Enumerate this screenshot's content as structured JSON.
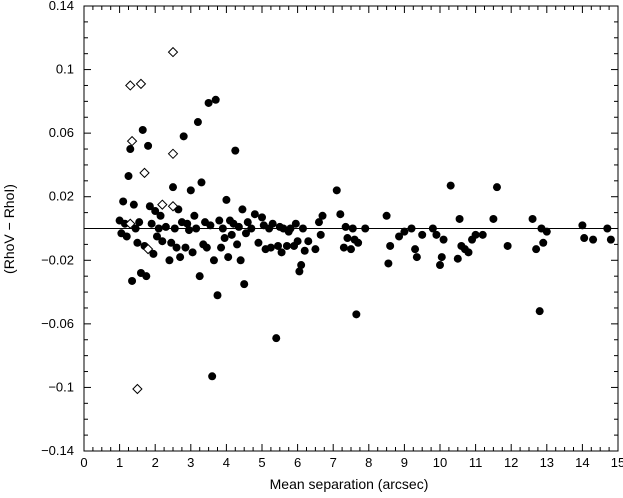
{
  "chart_data": {
    "type": "scatter",
    "title": "",
    "xlabel": "Mean separation (arcsec)",
    "ylabel": "(RhoV − RhoI)",
    "xlim": [
      0,
      15
    ],
    "ylim": [
      -0.14,
      0.14
    ],
    "x_ticks": [
      "0",
      "1",
      "2",
      "3",
      "4",
      "5",
      "6",
      "7",
      "8",
      "9",
      "10",
      "11",
      "12",
      "13",
      "14",
      "15"
    ],
    "y_ticks": [
      "−0.14",
      "−0.1",
      "−0.06",
      "−0.02",
      "0.02",
      "0.06",
      "0.1",
      "0.14"
    ],
    "reference_line_y": 0,
    "grid": false,
    "legend": "none",
    "series": [
      {
        "marker": "filled-circle",
        "color": "#000000",
        "points": [
          [
            1.0,
            0.005
          ],
          [
            1.05,
            -0.003
          ],
          [
            1.1,
            0.017
          ],
          [
            1.15,
            0.003
          ],
          [
            1.2,
            -0.005
          ],
          [
            1.25,
            0.033
          ],
          [
            1.3,
            0.05
          ],
          [
            1.35,
            -0.033
          ],
          [
            1.4,
            0.015
          ],
          [
            1.45,
            0.0
          ],
          [
            1.5,
            -0.009
          ],
          [
            1.55,
            0.004
          ],
          [
            1.6,
            -0.028
          ],
          [
            1.65,
            0.062
          ],
          [
            1.7,
            -0.011
          ],
          [
            1.75,
            -0.03
          ],
          [
            1.8,
            0.052
          ],
          [
            1.85,
            0.014
          ],
          [
            1.9,
            0.003
          ],
          [
            1.95,
            -0.016
          ],
          [
            2.0,
            0.011
          ],
          [
            2.05,
            -0.005
          ],
          [
            2.1,
            0.0
          ],
          [
            2.15,
            0.008
          ],
          [
            2.2,
            -0.008
          ],
          [
            2.3,
            0.001
          ],
          [
            2.4,
            -0.02
          ],
          [
            2.45,
            -0.009
          ],
          [
            2.5,
            0.026
          ],
          [
            2.55,
            0.0
          ],
          [
            2.6,
            -0.012
          ],
          [
            2.65,
            0.012
          ],
          [
            2.7,
            -0.018
          ],
          [
            2.75,
            0.004
          ],
          [
            2.8,
            0.058
          ],
          [
            2.85,
            -0.012
          ],
          [
            2.9,
            0.003
          ],
          [
            2.95,
            -0.001
          ],
          [
            3.0,
            0.024
          ],
          [
            3.05,
            -0.015
          ],
          [
            3.1,
            0.008
          ],
          [
            3.15,
            0.0
          ],
          [
            3.2,
            0.067
          ],
          [
            3.25,
            -0.03
          ],
          [
            3.3,
            0.029
          ],
          [
            3.35,
            -0.01
          ],
          [
            3.4,
            0.004
          ],
          [
            3.45,
            -0.012
          ],
          [
            3.5,
            0.079
          ],
          [
            3.55,
            0.002
          ],
          [
            3.6,
            -0.093
          ],
          [
            3.65,
            -0.02
          ],
          [
            3.7,
            0.081
          ],
          [
            3.75,
            -0.042
          ],
          [
            3.8,
            0.005
          ],
          [
            3.85,
            -0.012
          ],
          [
            3.9,
            0.0
          ],
          [
            3.95,
            -0.006
          ],
          [
            4.0,
            0.018
          ],
          [
            4.05,
            -0.018
          ],
          [
            4.1,
            0.005
          ],
          [
            4.15,
            -0.004
          ],
          [
            4.2,
            0.003
          ],
          [
            4.25,
            0.049
          ],
          [
            4.3,
            -0.01
          ],
          [
            4.35,
            0.001
          ],
          [
            4.4,
            -0.02
          ],
          [
            4.45,
            0.012
          ],
          [
            4.5,
            -0.035
          ],
          [
            4.55,
            -0.003
          ],
          [
            4.6,
            0.004
          ],
          [
            4.7,
            0.0
          ],
          [
            4.8,
            0.009
          ],
          [
            4.9,
            -0.009
          ],
          [
            5.0,
            0.007
          ],
          [
            5.05,
            0.002
          ],
          [
            5.1,
            -0.013
          ],
          [
            5.2,
            0.0
          ],
          [
            5.25,
            -0.012
          ],
          [
            5.3,
            0.003
          ],
          [
            5.4,
            -0.069
          ],
          [
            5.45,
            -0.011
          ],
          [
            5.5,
            0.001
          ],
          [
            5.55,
            -0.015
          ],
          [
            5.6,
            0.0
          ],
          [
            5.7,
            -0.011
          ],
          [
            5.75,
            -0.002
          ],
          [
            5.8,
            0.0
          ],
          [
            5.9,
            -0.011
          ],
          [
            5.95,
            0.003
          ],
          [
            6.0,
            -0.008
          ],
          [
            6.05,
            -0.027
          ],
          [
            6.1,
            -0.023
          ],
          [
            6.15,
            0.0
          ],
          [
            6.2,
            -0.014
          ],
          [
            6.3,
            -0.008
          ],
          [
            6.5,
            -0.013
          ],
          [
            6.6,
            0.004
          ],
          [
            6.65,
            -0.004
          ],
          [
            6.7,
            0.008
          ],
          [
            7.1,
            0.024
          ],
          [
            7.2,
            0.009
          ],
          [
            7.3,
            -0.012
          ],
          [
            7.35,
            0.001
          ],
          [
            7.4,
            -0.006
          ],
          [
            7.5,
            -0.013
          ],
          [
            7.55,
            0.0
          ],
          [
            7.6,
            -0.007
          ],
          [
            7.65,
            -0.054
          ],
          [
            7.7,
            -0.009
          ],
          [
            7.9,
            0.0
          ],
          [
            8.5,
            0.008
          ],
          [
            8.55,
            -0.022
          ],
          [
            8.6,
            -0.011
          ],
          [
            8.85,
            -0.005
          ],
          [
            9.0,
            -0.002
          ],
          [
            9.2,
            0.0
          ],
          [
            9.3,
            -0.013
          ],
          [
            9.35,
            -0.018
          ],
          [
            9.5,
            -0.004
          ],
          [
            9.8,
            0.0
          ],
          [
            9.9,
            -0.004
          ],
          [
            10.0,
            -0.023
          ],
          [
            10.05,
            -0.018
          ],
          [
            10.1,
            -0.007
          ],
          [
            10.3,
            0.027
          ],
          [
            10.5,
            -0.019
          ],
          [
            10.55,
            0.006
          ],
          [
            10.6,
            -0.011
          ],
          [
            10.7,
            -0.013
          ],
          [
            10.8,
            -0.015
          ],
          [
            10.9,
            -0.007
          ],
          [
            11.0,
            -0.004
          ],
          [
            11.2,
            -0.004
          ],
          [
            11.5,
            0.006
          ],
          [
            11.6,
            0.026
          ],
          [
            11.9,
            -0.011
          ],
          [
            12.6,
            0.006
          ],
          [
            12.7,
            -0.013
          ],
          [
            12.8,
            -0.052
          ],
          [
            12.85,
            0.0
          ],
          [
            12.9,
            -0.009
          ],
          [
            13.0,
            -0.002
          ],
          [
            14.0,
            0.002
          ],
          [
            14.05,
            -0.006
          ],
          [
            14.3,
            -0.007
          ],
          [
            14.7,
            0.0
          ],
          [
            14.8,
            -0.007
          ]
        ]
      },
      {
        "marker": "open-diamond",
        "color": "#000000",
        "points": [
          [
            1.3,
            0.09
          ],
          [
            1.6,
            0.091
          ],
          [
            2.5,
            0.111
          ],
          [
            1.35,
            0.055
          ],
          [
            2.5,
            0.047
          ],
          [
            1.7,
            0.035
          ],
          [
            1.5,
            -0.101
          ],
          [
            2.5,
            0.014
          ],
          [
            2.2,
            0.015
          ],
          [
            1.3,
            0.003
          ],
          [
            1.8,
            -0.013
          ]
        ]
      }
    ]
  }
}
